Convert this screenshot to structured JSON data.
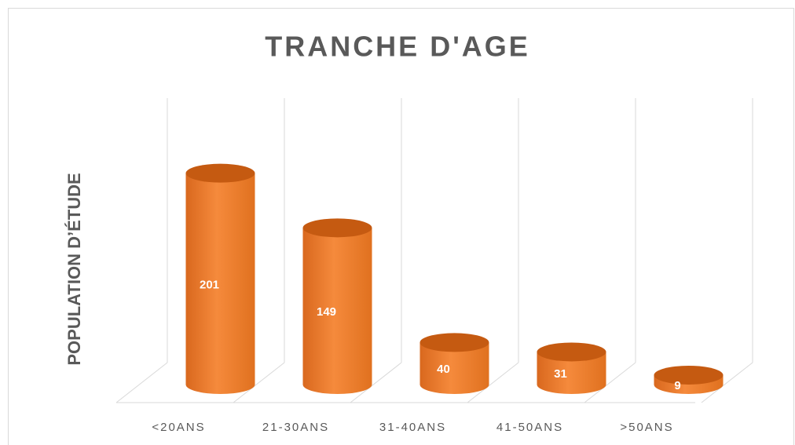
{
  "chart_data": {
    "type": "cylinder-bar",
    "title": "TRANCHE D'AGE",
    "y_label": "POPULATION D’ÉTUDE",
    "categories": [
      "<20ANS",
      "21-30ANS",
      "31-40ANS",
      "41-50ANS",
      ">50ANS"
    ],
    "values": [
      201,
      149,
      40,
      31,
      9
    ],
    "color": "#ED7D31",
    "grid": true
  }
}
